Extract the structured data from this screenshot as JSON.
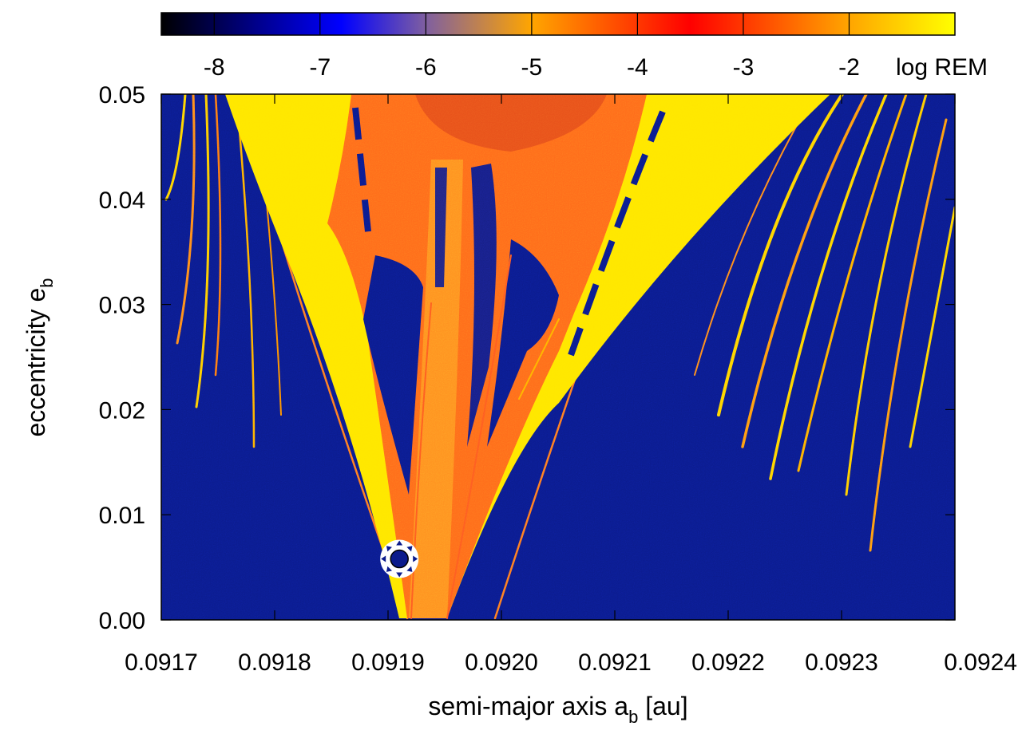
{
  "chart_data": {
    "type": "heatmap",
    "title": "",
    "xlabel": "semi-major axis a",
    "xlabel_sub": "b",
    "xlabel_unit": " [au]",
    "ylabel": "eccentricity e",
    "ylabel_sub": "b",
    "xlim": [
      0.0917,
      0.0924
    ],
    "ylim": [
      0.0,
      0.05
    ],
    "x_ticks": [
      "0.0917",
      "0.0918",
      "0.0919",
      "0.0920",
      "0.0921",
      "0.0922",
      "0.0923",
      "0.0924"
    ],
    "y_ticks": [
      "0.00",
      "0.01",
      "0.02",
      "0.03",
      "0.04",
      "0.05"
    ],
    "colorbar": {
      "label": "log REM",
      "range": [
        -8.5,
        -1.0
      ],
      "ticks": [
        "-8",
        "-7",
        "-6",
        "-5",
        "-4",
        "-3",
        "-2"
      ],
      "tick_values": [
        -8,
        -7,
        -6,
        -5,
        -4,
        -3,
        -2
      ],
      "stops": [
        {
          "value": -8.5,
          "color": "#000000"
        },
        {
          "value": -7.6,
          "color": "#00008b"
        },
        {
          "value": -6.8,
          "color": "#0000ff"
        },
        {
          "value": -6.0,
          "color": "#7f5fa0"
        },
        {
          "value": -5.0,
          "color": "#ffa500"
        },
        {
          "value": -3.5,
          "color": "#ff0000"
        },
        {
          "value": -2.0,
          "color": "#ffa500"
        },
        {
          "value": -1.0,
          "color": "#ffff00"
        }
      ]
    },
    "regions": [
      {
        "name": "stable-background",
        "log_rem": -7.7,
        "color": "#0a1a8a"
      },
      {
        "name": "chaotic-wedge",
        "log_rem": -1.3,
        "color": "#ffe800"
      },
      {
        "name": "resonance-core",
        "log_rem": -3.3,
        "color": "#ff6a1a"
      }
    ],
    "marker": {
      "name": "nominal-system",
      "x": 0.09191,
      "y": 0.0058,
      "symbol": "sun-symbol"
    }
  }
}
